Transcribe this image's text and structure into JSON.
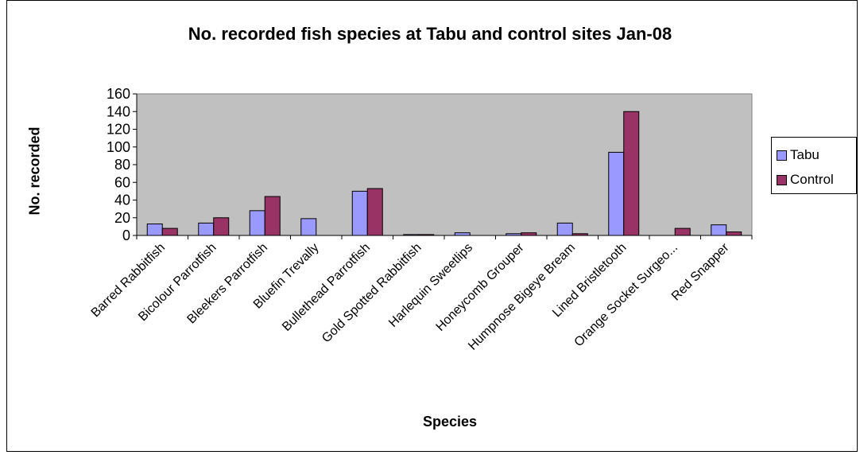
{
  "chart_data": {
    "type": "bar",
    "title": "No. recorded fish species at Tabu and control sites Jan-08",
    "xlabel": "Species",
    "ylabel": "No. recorded",
    "ylim": [
      0,
      160
    ],
    "yticks": [
      0,
      20,
      40,
      60,
      80,
      100,
      120,
      140,
      160
    ],
    "grid": false,
    "legend_position": "right",
    "categories": [
      "Barred Rabbitfish",
      "Bicolour Parrotfish",
      "Bleekers Parrotfish",
      "Bluefin Trevally",
      "Bullethead Parrotfish",
      "Gold Spotted Rabbitfish",
      "Harlequin Sweetlips",
      "Honeycomb Grouper",
      "Humpnose Bigeye Bream",
      "Lined Bristletooth",
      "Orange Socket Surgeo...",
      "Red Snapper"
    ],
    "series": [
      {
        "name": "Tabu",
        "color": "#9999ff",
        "values": [
          13,
          14,
          28,
          19,
          50,
          1,
          3,
          2,
          14,
          94,
          0,
          12
        ]
      },
      {
        "name": "Control",
        "color": "#993366",
        "values": [
          8,
          20,
          44,
          0,
          53,
          1,
          0,
          3,
          2,
          140,
          8,
          4
        ]
      }
    ],
    "plot_background": "#c0c0c0"
  }
}
